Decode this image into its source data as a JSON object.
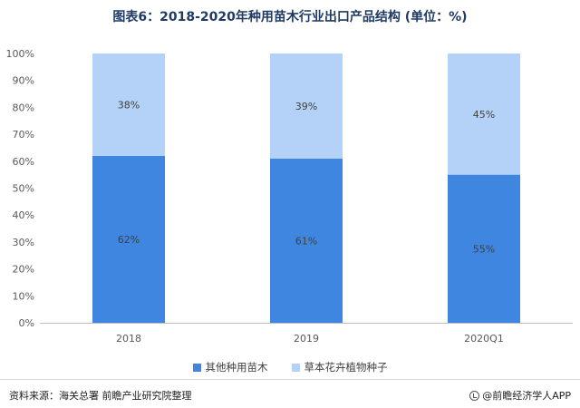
{
  "title": "图表6：2018-2020年种用苗木行业出口产品结构 (单位：%)",
  "source": "资料来源：海关总署 前瞻产业研究院整理",
  "brand": "@前瞻经济学人APP",
  "chart_data": {
    "type": "bar",
    "stacked": true,
    "categories": [
      "2018",
      "2019",
      "2020Q1"
    ],
    "series": [
      {
        "name": "其他种用苗木",
        "values": [
          62,
          61,
          55
        ],
        "labels": [
          "62%",
          "61%",
          "55%"
        ],
        "color": "#3f86e0"
      },
      {
        "name": "草本花卉植物种子",
        "values": [
          38,
          39,
          45
        ],
        "labels": [
          "38%",
          "39%",
          "45%"
        ],
        "color": "#b4d2f7"
      }
    ],
    "yticks": [
      "0%",
      "10%",
      "20%",
      "30%",
      "40%",
      "50%",
      "60%",
      "70%",
      "80%",
      "90%",
      "100%"
    ],
    "ylim": [
      0,
      100
    ],
    "grid": false,
    "legend": "bottom"
  }
}
